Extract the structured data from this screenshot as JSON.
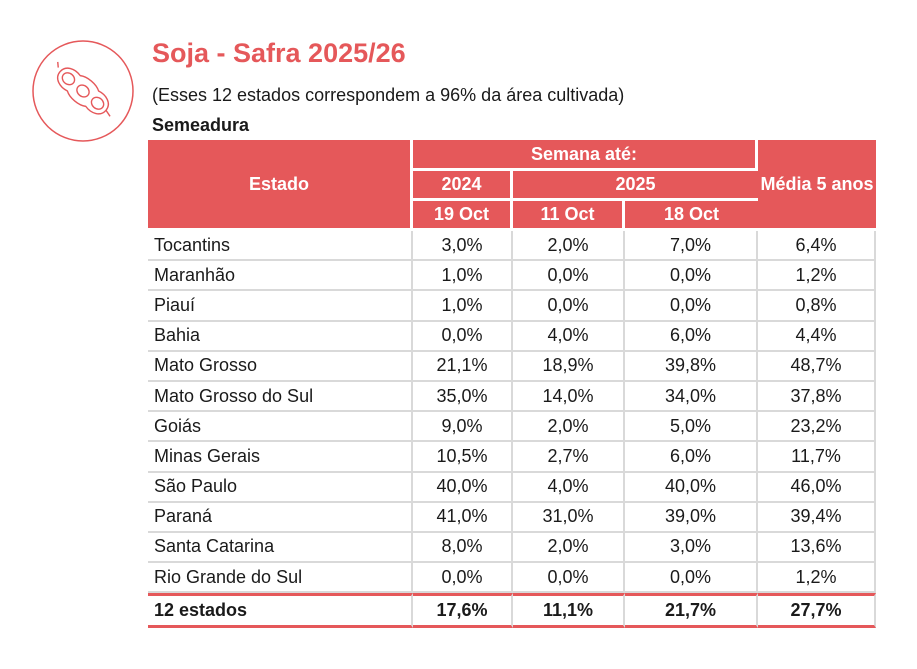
{
  "header": {
    "title": "Soja - Safra 2025/26",
    "subtitle": "(Esses 12 estados correspondem a 96% da área cultivada)",
    "section": "Semeadura",
    "logo_icon": "soybean-pod-icon",
    "accent_color": "#e5585a"
  },
  "table": {
    "col_estado": "Estado",
    "col_semana": "Semana até:",
    "col_media": "Média  5 anos",
    "year_2024": "2024",
    "year_2025": "2025",
    "date_1": "19 Oct",
    "date_2": "11 Oct",
    "date_3": "18 Oct",
    "rows": [
      [
        "Tocantins",
        "3,0%",
        "2,0%",
        "7,0%",
        "6,4%"
      ],
      [
        "Maranhão",
        "1,0%",
        "0,0%",
        "0,0%",
        "1,2%"
      ],
      [
        "Piauí",
        "1,0%",
        "0,0%",
        "0,0%",
        "0,8%"
      ],
      [
        "Bahia",
        "0,0%",
        "4,0%",
        "6,0%",
        "4,4%"
      ],
      [
        "Mato Grosso",
        "21,1%",
        "18,9%",
        "39,8%",
        "48,7%"
      ],
      [
        "Mato Grosso do Sul",
        "35,0%",
        "14,0%",
        "34,0%",
        "37,8%"
      ],
      [
        "Goiás",
        "9,0%",
        "2,0%",
        "5,0%",
        "23,2%"
      ],
      [
        "Minas Gerais",
        "10,5%",
        "2,7%",
        "6,0%",
        "11,7%"
      ],
      [
        "São Paulo",
        "40,0%",
        "4,0%",
        "40,0%",
        "46,0%"
      ],
      [
        "Paraná",
        "41,0%",
        "31,0%",
        "39,0%",
        "39,4%"
      ],
      [
        "Santa Catarina",
        "8,0%",
        "2,0%",
        "3,0%",
        "13,6%"
      ],
      [
        "Rio Grande do Sul",
        "0,0%",
        "0,0%",
        "0,0%",
        "1,2%"
      ]
    ],
    "total": [
      "12 estados",
      "17,6%",
      "11,1%",
      "21,7%",
      "27,7%"
    ]
  }
}
